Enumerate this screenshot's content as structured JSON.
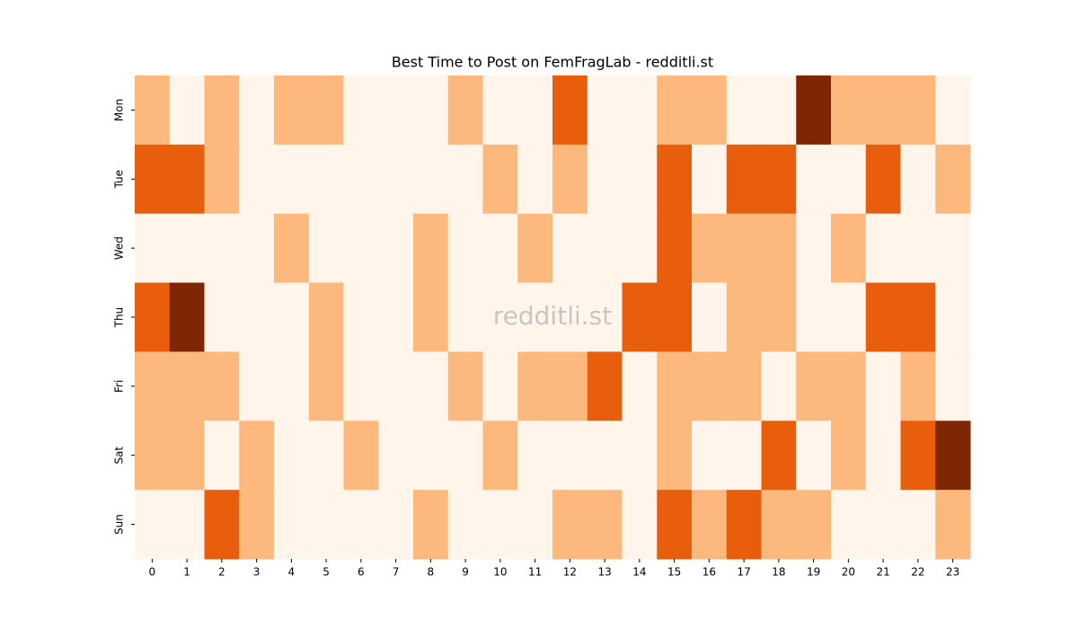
{
  "chart_data": {
    "type": "heatmap",
    "title": "Best Time to Post on FemFragLab - redditli.st",
    "annotation": "redditli.st",
    "x_categories": [
      "0",
      "1",
      "2",
      "3",
      "4",
      "5",
      "6",
      "7",
      "8",
      "9",
      "10",
      "11",
      "12",
      "13",
      "14",
      "15",
      "16",
      "17",
      "18",
      "19",
      "20",
      "21",
      "22",
      "23"
    ],
    "y_categories": [
      "Mon",
      "Tue",
      "Wed",
      "Thu",
      "Fri",
      "Sat",
      "Sun"
    ],
    "colors": [
      "#fff5eb",
      "#fdb97d",
      "#e95e0d",
      "#7f2704"
    ],
    "values": [
      [
        1,
        0,
        1,
        0,
        1,
        1,
        0,
        0,
        0,
        1,
        0,
        0,
        2,
        0,
        0,
        1,
        1,
        0,
        0,
        3,
        1,
        1,
        1,
        0
      ],
      [
        2,
        2,
        1,
        0,
        0,
        0,
        0,
        0,
        0,
        0,
        1,
        0,
        1,
        0,
        0,
        2,
        0,
        2,
        2,
        0,
        0,
        2,
        0,
        1
      ],
      [
        0,
        0,
        0,
        0,
        1,
        0,
        0,
        0,
        1,
        0,
        0,
        1,
        0,
        0,
        0,
        2,
        1,
        1,
        1,
        0,
        1,
        0,
        0,
        0
      ],
      [
        2,
        3,
        0,
        0,
        0,
        1,
        0,
        0,
        1,
        0,
        0,
        0,
        0,
        0,
        2,
        2,
        0,
        1,
        1,
        0,
        0,
        2,
        2,
        0
      ],
      [
        1,
        1,
        1,
        0,
        0,
        1,
        0,
        0,
        0,
        1,
        0,
        1,
        1,
        2,
        0,
        1,
        1,
        1,
        0,
        1,
        1,
        0,
        1,
        0
      ],
      [
        1,
        1,
        0,
        1,
        0,
        0,
        1,
        0,
        0,
        0,
        1,
        0,
        0,
        0,
        0,
        1,
        0,
        0,
        2,
        0,
        1,
        0,
        2,
        3
      ],
      [
        0,
        0,
        2,
        1,
        0,
        0,
        0,
        0,
        1,
        0,
        0,
        0,
        1,
        1,
        0,
        2,
        1,
        2,
        1,
        1,
        0,
        0,
        0,
        1
      ]
    ]
  }
}
